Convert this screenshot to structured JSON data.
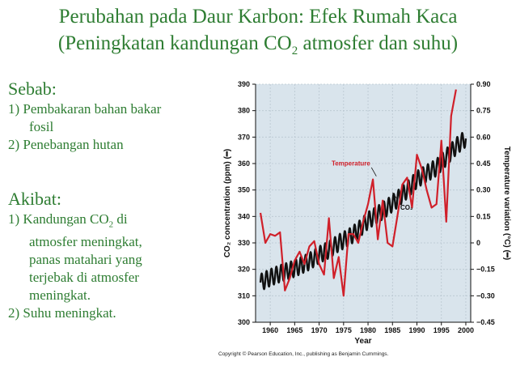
{
  "slide": {
    "title_line1": "Perubahan pada Daur Karbon: Efek Rumah Kaca",
    "title_line2_pre": "(Peningkatan kandungan CO",
    "title_line2_sub": "2",
    "title_line2_post": " atmosfer dan suhu)"
  },
  "causes": {
    "heading": "Sebab:",
    "item1_line1": "1) Pembakaran bahan bakar",
    "item1_line2": "fosil",
    "item2": "2) Penebangan hutan"
  },
  "effects": {
    "heading": "Akibat:",
    "item1_pre": "1) Kandungan CO",
    "item1_sub": "2",
    "item1_post": " di",
    "item1_line2": "atmosfer meningkat,",
    "item1_line3": "panas matahari yang",
    "item1_line4": "terjebak di atmosfer",
    "item1_line5": "meningkat.",
    "item2": "2) Suhu meningkat."
  },
  "copyright": "Copyright © Pearson Education, Inc., publishing as Benjamin Cummings.",
  "chart_data": {
    "type": "line",
    "xlabel": "Year",
    "ylabel_left": "CO₂ concentration (ppm) (━)",
    "ylabel_right": "Temperature variation (°C) (━)",
    "xlim": [
      1957,
      2001
    ],
    "ylim_left": [
      300,
      390
    ],
    "ylim_right": [
      -0.45,
      0.9
    ],
    "x_ticks": [
      1960,
      1965,
      1970,
      1975,
      1980,
      1985,
      1990,
      1995,
      2000
    ],
    "y_ticks_left": [
      300,
      310,
      320,
      330,
      340,
      350,
      360,
      370,
      380,
      390
    ],
    "y_ticks_right_values": [
      -0.45,
      -0.3,
      -0.15,
      0,
      0.15,
      0.3,
      0.45,
      0.6,
      0.75,
      0.9
    ],
    "y_ticks_right_labels": [
      "−0.45",
      "−0.30",
      "−0.15",
      "0",
      "0.15",
      "0.30",
      "0.45",
      "0.60",
      "0.75",
      "0.90"
    ],
    "grid": true,
    "colors": {
      "plot_bg": "#d9e4ec",
      "co2": "#111111",
      "temperature": "#d0202a",
      "label_temperature": "#d0202a",
      "label_co2": "#111111",
      "text": "#2e7d32"
    },
    "series": [
      {
        "name": "Temperature",
        "axis": "right",
        "x": [
          1958,
          1959,
          1960,
          1961,
          1962,
          1963,
          1964,
          1965,
          1966,
          1967,
          1968,
          1969,
          1970,
          1971,
          1972,
          1973,
          1974,
          1975,
          1976,
          1977,
          1978,
          1979,
          1980,
          1981,
          1982,
          1983,
          1984,
          1985,
          1986,
          1987,
          1988,
          1989,
          1990,
          1991,
          1992,
          1993,
          1994,
          1995,
          1996,
          1997,
          1998
        ],
        "values": [
          0.17,
          0.0,
          0.05,
          0.04,
          0.06,
          -0.27,
          -0.2,
          -0.1,
          -0.05,
          -0.12,
          -0.02,
          0.01,
          -0.12,
          -0.18,
          0.14,
          -0.2,
          -0.08,
          -0.3,
          0.05,
          0.05,
          0.0,
          0.12,
          0.22,
          0.36,
          0.02,
          0.24,
          0.0,
          -0.02,
          0.15,
          0.33,
          0.37,
          0.2,
          0.5,
          0.42,
          0.3,
          0.2,
          0.22,
          0.58,
          0.12,
          0.72,
          0.87
        ]
      },
      {
        "name": "CO₂",
        "axis": "left",
        "x": [
          1958,
          1960,
          1962,
          1964,
          1966,
          1968,
          1970,
          1972,
          1974,
          1976,
          1978,
          1980,
          1982,
          1984,
          1986,
          1988,
          1990,
          1992,
          1994,
          1996,
          1998,
          2000
        ],
        "values": [
          315,
          316.9,
          318.4,
          319.6,
          321.2,
          323,
          325.5,
          327.4,
          330,
          332,
          334.8,
          338.5,
          340.8,
          343.5,
          346.5,
          350,
          354,
          356.3,
          358.5,
          362.4,
          366.5,
          369.5
        ],
        "seasonal_amplitude_ppm": 3.2
      }
    ],
    "annotations": [
      "Temperature",
      "CO₂"
    ]
  }
}
